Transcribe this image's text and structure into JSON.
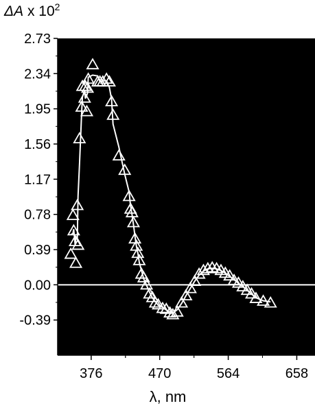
{
  "chart_data": {
    "type": "scatter",
    "title": "",
    "ylabel": {
      "symbol": "ΔA",
      "text": " x 10",
      "exponent": "2"
    },
    "xlabel": "λ, nm",
    "xlim": [
      330,
      683
    ],
    "ylim": [
      -0.78,
      2.73
    ],
    "yticks": [
      "2.73",
      "2.34",
      "1.95",
      "1.56",
      "1.17",
      "0.78",
      "0.39",
      "0.00",
      "-0.39"
    ],
    "xticks": [
      "376",
      "470",
      "564",
      "658"
    ],
    "background": "#000000",
    "marker_color": "#ffffff",
    "grid": false,
    "series": [
      {
        "marker": "triangle",
        "points": [
          [
            348,
            0.34
          ],
          [
            351,
            0.77
          ],
          [
            352,
            0.6
          ],
          [
            354,
            0.48
          ],
          [
            355,
            0.24
          ],
          [
            357,
            0.88
          ],
          [
            358,
            0.44
          ],
          [
            360,
            1.62
          ],
          [
            363,
            1.97
          ],
          [
            364,
            2.2
          ],
          [
            367,
            2.07
          ],
          [
            368,
            2.2
          ],
          [
            370,
            1.92
          ],
          [
            371,
            2.18
          ],
          [
            372,
            2.28
          ],
          [
            378,
            2.44
          ],
          [
            385,
            2.25
          ],
          [
            388,
            2.25
          ],
          [
            392,
            2.25
          ],
          [
            397,
            2.28
          ],
          [
            401,
            2.25
          ],
          [
            404,
            2.03
          ],
          [
            406,
            1.88
          ],
          [
            414,
            1.43
          ],
          [
            422,
            1.27
          ],
          [
            428,
            0.98
          ],
          [
            430,
            0.84
          ],
          [
            432,
            0.8
          ],
          [
            434,
            0.69
          ],
          [
            436,
            0.51
          ],
          [
            438,
            0.43
          ],
          [
            440,
            0.35
          ],
          [
            442,
            0.27
          ],
          [
            445,
            0.12
          ],
          [
            448,
            0.08
          ],
          [
            452,
            0.0
          ],
          [
            456,
            -0.1
          ],
          [
            460,
            -0.14
          ],
          [
            464,
            -0.2
          ],
          [
            468,
            -0.22
          ],
          [
            474,
            -0.26
          ],
          [
            479,
            -0.27
          ],
          [
            484,
            -0.31
          ],
          [
            488,
            -0.33
          ],
          [
            494,
            -0.3
          ],
          [
            500,
            -0.2
          ],
          [
            506,
            -0.12
          ],
          [
            512,
            -0.04
          ],
          [
            518,
            0.04
          ],
          [
            524,
            0.12
          ],
          [
            530,
            0.16
          ],
          [
            536,
            0.18
          ],
          [
            542,
            0.19
          ],
          [
            548,
            0.18
          ],
          [
            554,
            0.16
          ],
          [
            560,
            0.13
          ],
          [
            566,
            0.1
          ],
          [
            572,
            0.05
          ],
          [
            578,
            0.02
          ],
          [
            584,
            -0.02
          ],
          [
            590,
            -0.06
          ],
          [
            596,
            -0.1
          ],
          [
            602,
            -0.15
          ],
          [
            612,
            -0.18
          ],
          [
            622,
            -0.2
          ]
        ]
      }
    ]
  }
}
